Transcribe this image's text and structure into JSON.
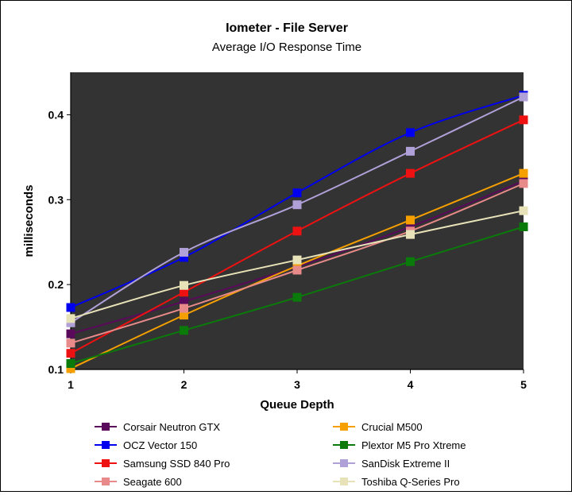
{
  "chart_data": {
    "type": "line",
    "title": "Iometer - File Server",
    "subtitle": "Average I/O Response Time",
    "xlabel": "Queue Depth",
    "ylabel": "milliseconds",
    "x": [
      1,
      2,
      3,
      4,
      5
    ],
    "xlim": [
      1,
      5
    ],
    "ylim": [
      0.1,
      0.45
    ],
    "yticks": [
      0.1,
      0.2,
      0.3,
      0.4
    ],
    "ytick_labels": [
      "0.1",
      "0.2",
      "0.3",
      "0.4"
    ],
    "xtick_labels": [
      "1",
      "2",
      "3",
      "4",
      "5"
    ],
    "plot_background": "#333333",
    "legend_position": "bottom",
    "series": [
      {
        "name": "Corsair Neutron GTX",
        "color": "#5a0a5a",
        "values": [
          0.142,
          0.18,
          0.221,
          0.268,
          0.322
        ]
      },
      {
        "name": "Crucial M500",
        "color": "#f5a000",
        "values": [
          0.101,
          0.164,
          0.222,
          0.276,
          0.331
        ]
      },
      {
        "name": "OCZ Vector 150",
        "color": "#0000ee",
        "values": [
          0.173,
          0.232,
          0.308,
          0.379,
          0.423
        ]
      },
      {
        "name": "Plextor M5 Pro Xtreme",
        "color": "#0a7a0a",
        "values": [
          0.107,
          0.146,
          0.185,
          0.227,
          0.268
        ]
      },
      {
        "name": "Samsung SSD 840 Pro",
        "color": "#ee1111",
        "values": [
          0.119,
          0.191,
          0.263,
          0.331,
          0.394
        ]
      },
      {
        "name": "SanDisk Extreme II",
        "color": "#b0a0d8",
        "values": [
          0.155,
          0.238,
          0.294,
          0.357,
          0.421
        ]
      },
      {
        "name": "Seagate 600",
        "color": "#e88a8a",
        "values": [
          0.131,
          0.172,
          0.217,
          0.263,
          0.319
        ]
      },
      {
        "name": "Toshiba Q-Series Pro",
        "color": "#e8e2b8",
        "values": [
          0.16,
          0.199,
          0.229,
          0.259,
          0.287
        ]
      }
    ]
  }
}
